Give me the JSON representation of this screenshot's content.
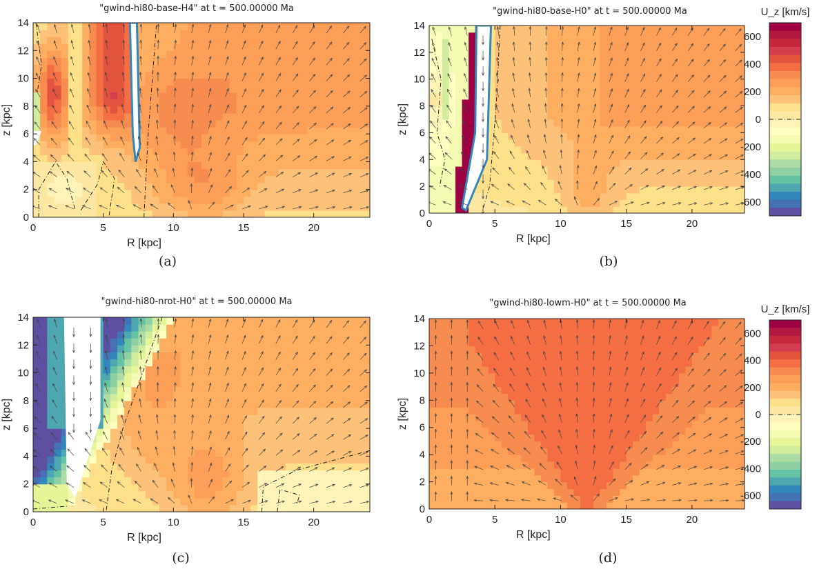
{
  "chart_data": [
    {
      "id": "a",
      "type": "heatmap",
      "title": "\"gwind-hi80-base-H4\" at t = 500.00000 Ma",
      "xlabel": "R [kpc]",
      "ylabel": "z [kpc]",
      "xlim": [
        0,
        24
      ],
      "ylim": [
        0,
        14
      ],
      "xticks": [
        0,
        5,
        10,
        15,
        20
      ],
      "yticks": [
        0,
        2,
        4,
        6,
        8,
        10,
        12,
        14
      ],
      "caption": "(a)",
      "scenario": "base",
      "colorbar": false
    },
    {
      "id": "b",
      "type": "heatmap",
      "title": "\"gwind-hi80-base-H0\" at t = 500.00000 Ma",
      "xlabel": "R [kpc]",
      "ylabel": "z [kpc]",
      "xlim": [
        0,
        24
      ],
      "ylim": [
        0,
        14
      ],
      "xticks": [
        0,
        5,
        10,
        15,
        20
      ],
      "yticks": [
        0,
        2,
        4,
        6,
        8,
        10,
        12,
        14
      ],
      "caption": "(b)",
      "scenario": "base0",
      "colorbar": true
    },
    {
      "id": "c",
      "type": "heatmap",
      "title": "\"gwind-hi80-nrot-H0\" at t = 500.00000 Ma",
      "xlabel": "R [kpc]",
      "ylabel": "z [kpc]",
      "xlim": [
        0,
        24
      ],
      "ylim": [
        0,
        14
      ],
      "xticks": [
        0,
        5,
        10,
        15,
        20
      ],
      "yticks": [
        0,
        2,
        4,
        6,
        8,
        10,
        12,
        14
      ],
      "caption": "(c)",
      "scenario": "nrot",
      "colorbar": false
    },
    {
      "id": "d",
      "type": "heatmap",
      "title": "\"gwind-hi80-lowm-H0\" at t = 500.00000 Ma",
      "xlabel": "R [kpc]",
      "ylabel": "z [kpc]",
      "xlim": [
        0,
        24
      ],
      "ylim": [
        0,
        14
      ],
      "xticks": [
        0,
        5,
        10,
        15,
        20
      ],
      "yticks": [
        0,
        2,
        4,
        6,
        8,
        10,
        12,
        14
      ],
      "caption": "(d)",
      "scenario": "lowm",
      "colorbar": true
    }
  ],
  "colorbar": {
    "title": "U_z [km/s]",
    "range": [
      -700,
      700
    ],
    "ticks": [
      600,
      400,
      200,
      0,
      -200,
      -400,
      -600
    ],
    "zero_marker": "dash-dot",
    "colors_top_to_bottom": [
      "#9e0142",
      "#b2173f",
      "#c6273d",
      "#d53e4f",
      "#e3543f",
      "#f46d43",
      "#f68c4f",
      "#fa9e58",
      "#fdae61",
      "#fdc17a",
      "#fee08b",
      "#fde8a3",
      "#fff3b8",
      "#ffffbf",
      "#f4fab2",
      "#e6f598",
      "#d0ec9c",
      "#abdda4",
      "#8fd1a4",
      "#66c2a5",
      "#4ea6b1",
      "#3288bd",
      "#4472b5",
      "#5e4fa2"
    ]
  }
}
